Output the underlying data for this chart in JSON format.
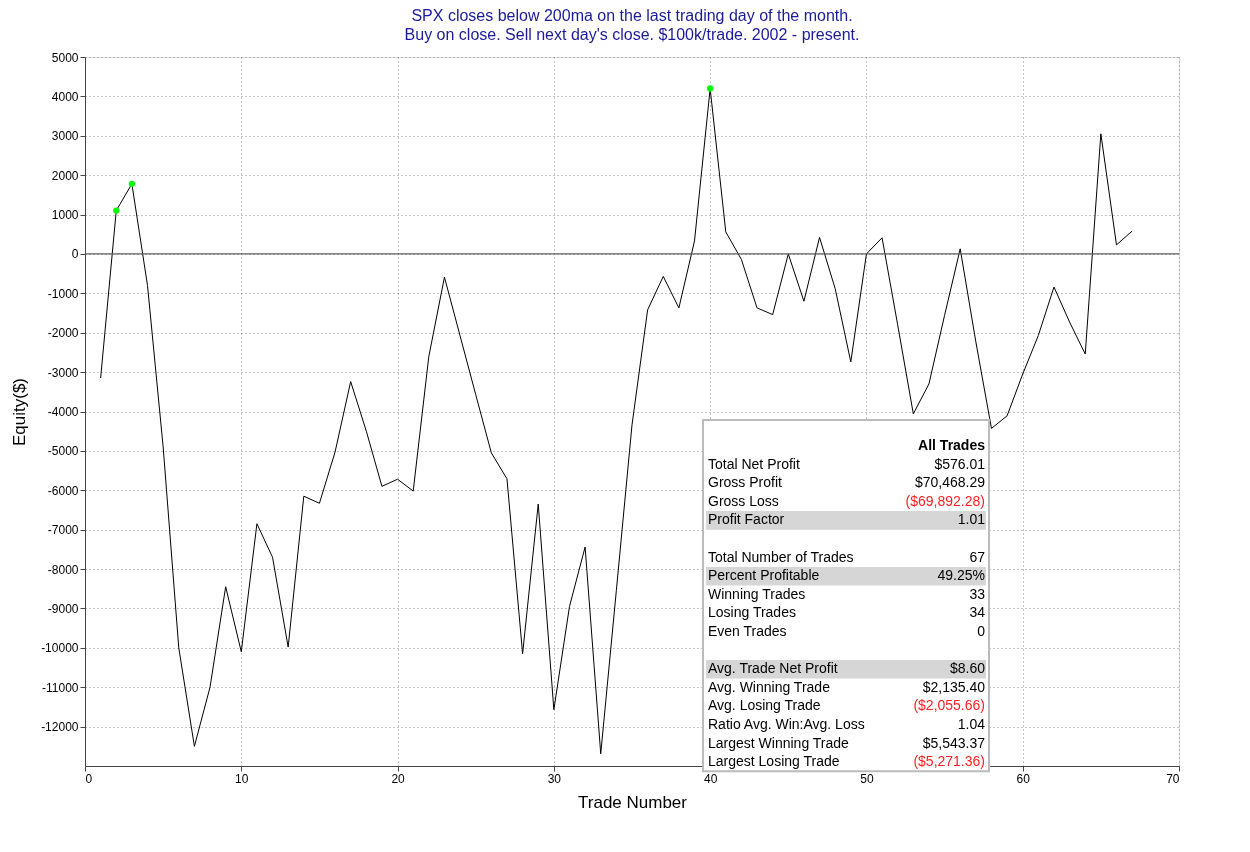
{
  "chart_data": {
    "type": "line",
    "title": "SPX closes below 200ma on the last trading day of the month.",
    "subtitle": "Buy on close. Sell next day's close. $100k/trade. 2002 - present.",
    "xlabel": "Trade Number",
    "ylabel": "Equity($)",
    "series": [
      {
        "type": "line",
        "color": "#000000",
        "marker": "none",
        "x": [
          1,
          2,
          3,
          4,
          5,
          6,
          7,
          8,
          9,
          10,
          11,
          12,
          13,
          14,
          15,
          16,
          17,
          18,
          19,
          20,
          21,
          22,
          23,
          24,
          25,
          26,
          27,
          28,
          29,
          30,
          31,
          32,
          33,
          34,
          35,
          36,
          37,
          38,
          39,
          40,
          41,
          42,
          43,
          44,
          45,
          46,
          47,
          48,
          49,
          50,
          51,
          52,
          53,
          54,
          55,
          56,
          57,
          58,
          59,
          60,
          61,
          62,
          63,
          64,
          65,
          66,
          67
        ],
        "values": [
          -3150,
          1100,
          1780,
          -800,
          -4900,
          -10000,
          -12500,
          -11000,
          -8450,
          -10100,
          -6850,
          -7700,
          -9980,
          -6150,
          -6330,
          -5030,
          -3240,
          -4500,
          -5900,
          -5720,
          -6020,
          -2600,
          -590,
          -2080,
          -3570,
          -5050,
          -5710,
          -10150,
          -6350,
          -11570,
          -8950,
          -7440,
          -12690,
          -8540,
          -4340,
          -1420,
          -570,
          -1370,
          330,
          4200,
          560,
          -140,
          -1370,
          -1540,
          0,
          -1200,
          420,
          -880,
          -2740,
          0,
          410,
          -1800,
          -4060,
          -3300,
          -1560,
          130,
          -2230,
          -4430,
          -4110,
          -3050,
          -2070,
          -840,
          -1730,
          -2540,
          3050,
          230,
          580
        ]
      },
      {
        "type": "scatter",
        "color": "#00ff00",
        "marker": "circle",
        "x": [
          2,
          3,
          40
        ],
        "values": [
          1100,
          1780,
          4200
        ]
      }
    ],
    "xlim": [
      0,
      70
    ],
    "xticks": [
      0,
      10,
      20,
      30,
      40,
      50,
      60,
      70
    ],
    "ylim": [
      -13000,
      5000
    ],
    "yticks": [
      -12000,
      -11000,
      -10000,
      -9000,
      -8000,
      -7000,
      -6000,
      -5000,
      -4000,
      -3000,
      -2000,
      -1000,
      0,
      1000,
      2000,
      3000,
      4000,
      5000
    ],
    "grid": true,
    "ref_lines": [
      {
        "axis": "y",
        "value": 0,
        "color": "#606060",
        "line_style": "solid"
      }
    ],
    "annotations": [
      "All Trades",
      "Total Net Profit",
      "$576.01",
      "Gross Profit",
      "$70,468.29",
      "Gross Loss",
      "($69,892.28)",
      "Profit Factor",
      "1.01",
      "Total Number of Trades",
      "67",
      "Percent Profitable",
      "49.25%",
      "Winning Trades",
      "33",
      "Losing Trades",
      "34",
      "Even Trades",
      "0",
      "Avg. Trade Net Profit",
      "$8.60",
      "Avg. Winning Trade",
      "$2,135.40",
      "Avg. Losing Trade",
      "($2,055.66)",
      "Ratio Avg. Win:Avg. Loss",
      "1.04",
      "Largest Winning Trade",
      "$5,543.37",
      "Largest Losing Trade",
      "($5,271.36)"
    ]
  }
}
